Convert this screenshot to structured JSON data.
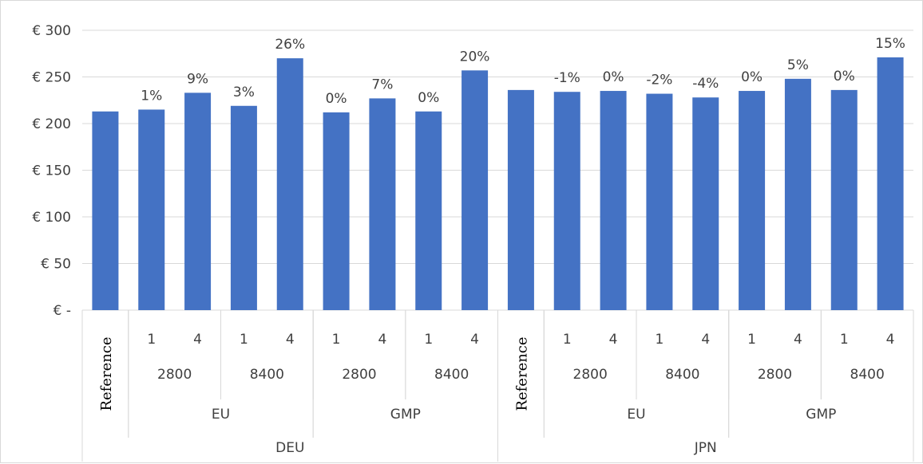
{
  "chart_data": {
    "type": "bar",
    "title": "",
    "xlabel": "",
    "ylabel": "",
    "ylim": [
      0,
      300
    ],
    "yticks": [
      0,
      50,
      100,
      150,
      200,
      250,
      300
    ],
    "ytick_labels": [
      "€ -",
      "€ 50",
      "€ 100",
      "€ 150",
      "€ 200",
      "€ 250",
      "€ 300"
    ],
    "grid": true,
    "bar_color": "#4472c4",
    "gridline_color": "#d9d9d9",
    "categories": [
      {
        "country": "DEU",
        "regulation": "",
        "volume": "",
        "option": "Reference",
        "value": 213,
        "label": ""
      },
      {
        "country": "DEU",
        "regulation": "EU",
        "volume": "2800",
        "option": "1",
        "value": 215,
        "label": "1%"
      },
      {
        "country": "DEU",
        "regulation": "EU",
        "volume": "2800",
        "option": "4",
        "value": 233,
        "label": "9%"
      },
      {
        "country": "DEU",
        "regulation": "EU",
        "volume": "8400",
        "option": "1",
        "value": 219,
        "label": "3%"
      },
      {
        "country": "DEU",
        "regulation": "EU",
        "volume": "8400",
        "option": "4",
        "value": 270,
        "label": "26%"
      },
      {
        "country": "DEU",
        "regulation": "GMP",
        "volume": "2800",
        "option": "1",
        "value": 212,
        "label": "0%"
      },
      {
        "country": "DEU",
        "regulation": "GMP",
        "volume": "2800",
        "option": "4",
        "value": 227,
        "label": "7%"
      },
      {
        "country": "DEU",
        "regulation": "GMP",
        "volume": "8400",
        "option": "1",
        "value": 213,
        "label": "0%"
      },
      {
        "country": "DEU",
        "regulation": "GMP",
        "volume": "8400",
        "option": "4",
        "value": 257,
        "label": "20%"
      },
      {
        "country": "JPN",
        "regulation": "",
        "volume": "",
        "option": "Reference",
        "value": 236,
        "label": ""
      },
      {
        "country": "JPN",
        "regulation": "EU",
        "volume": "2800",
        "option": "1",
        "value": 234,
        "label": "-1%"
      },
      {
        "country": "JPN",
        "regulation": "EU",
        "volume": "2800",
        "option": "4",
        "value": 235,
        "label": "0%"
      },
      {
        "country": "JPN",
        "regulation": "EU",
        "volume": "8400",
        "option": "1",
        "value": 232,
        "label": "-2%"
      },
      {
        "country": "JPN",
        "regulation": "EU",
        "volume": "8400",
        "option": "4",
        "value": 228,
        "label": "-4%"
      },
      {
        "country": "JPN",
        "regulation": "GMP",
        "volume": "2800",
        "option": "1",
        "value": 235,
        "label": "0%"
      },
      {
        "country": "JPN",
        "regulation": "GMP",
        "volume": "2800",
        "option": "4",
        "value": 248,
        "label": "5%"
      },
      {
        "country": "JPN",
        "regulation": "GMP",
        "volume": "8400",
        "option": "1",
        "value": 236,
        "label": "0%"
      },
      {
        "country": "JPN",
        "regulation": "GMP",
        "volume": "8400",
        "option": "4",
        "value": 271,
        "label": "15%"
      }
    ]
  }
}
